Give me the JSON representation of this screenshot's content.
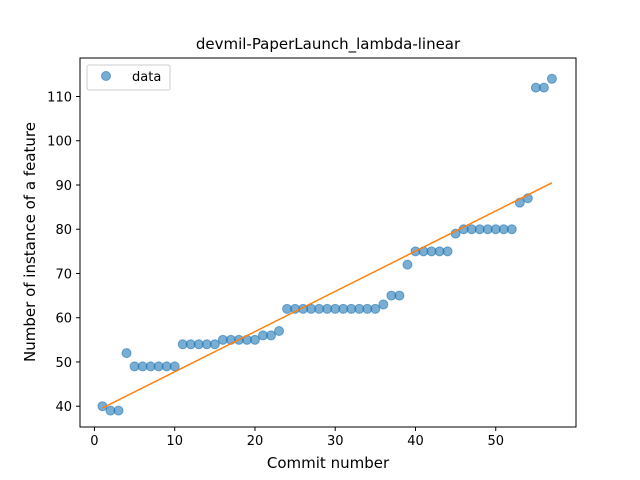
{
  "chart_data": {
    "type": "scatter",
    "title": "devmil-PaperLaunch_lambda-linear",
    "xlabel": "Commit number",
    "ylabel": "Number of instance of a feature",
    "xlim": [
      -1.8,
      60
    ],
    "ylim": [
      35.3,
      118.7
    ],
    "xticks": [
      0,
      10,
      20,
      30,
      40,
      50
    ],
    "yticks": [
      40,
      50,
      60,
      70,
      80,
      90,
      100,
      110
    ],
    "grid": false,
    "legend": {
      "entries": [
        "data"
      ],
      "placement": "top-left"
    },
    "series": [
      {
        "name": "data",
        "kind": "scatter",
        "color": "#1f77b4",
        "points": [
          [
            1,
            40
          ],
          [
            2,
            39
          ],
          [
            3,
            39
          ],
          [
            4,
            52
          ],
          [
            5,
            49
          ],
          [
            6,
            49
          ],
          [
            7,
            49
          ],
          [
            8,
            49
          ],
          [
            9,
            49
          ],
          [
            10,
            49
          ],
          [
            11,
            54
          ],
          [
            12,
            54
          ],
          [
            13,
            54
          ],
          [
            14,
            54
          ],
          [
            15,
            54
          ],
          [
            16,
            55
          ],
          [
            17,
            55
          ],
          [
            18,
            55
          ],
          [
            19,
            55
          ],
          [
            20,
            55
          ],
          [
            21,
            56
          ],
          [
            22,
            56
          ],
          [
            23,
            57
          ],
          [
            24,
            62
          ],
          [
            25,
            62
          ],
          [
            26,
            62
          ],
          [
            27,
            62
          ],
          [
            28,
            62
          ],
          [
            29,
            62
          ],
          [
            30,
            62
          ],
          [
            31,
            62
          ],
          [
            32,
            62
          ],
          [
            33,
            62
          ],
          [
            34,
            62
          ],
          [
            35,
            62
          ],
          [
            36,
            63
          ],
          [
            37,
            65
          ],
          [
            38,
            65
          ],
          [
            39,
            72
          ],
          [
            40,
            75
          ],
          [
            41,
            75
          ],
          [
            42,
            75
          ],
          [
            43,
            75
          ],
          [
            44,
            75
          ],
          [
            45,
            79
          ],
          [
            46,
            80
          ],
          [
            47,
            80
          ],
          [
            48,
            80
          ],
          [
            49,
            80
          ],
          [
            50,
            80
          ],
          [
            51,
            80
          ],
          [
            52,
            80
          ],
          [
            53,
            86
          ],
          [
            54,
            87
          ],
          [
            55,
            112
          ],
          [
            56,
            112
          ],
          [
            57,
            114
          ]
        ]
      },
      {
        "kind": "line",
        "color": "#ff7f0e",
        "points": [
          [
            1,
            39.6
          ],
          [
            57,
            90.5
          ]
        ]
      }
    ]
  }
}
